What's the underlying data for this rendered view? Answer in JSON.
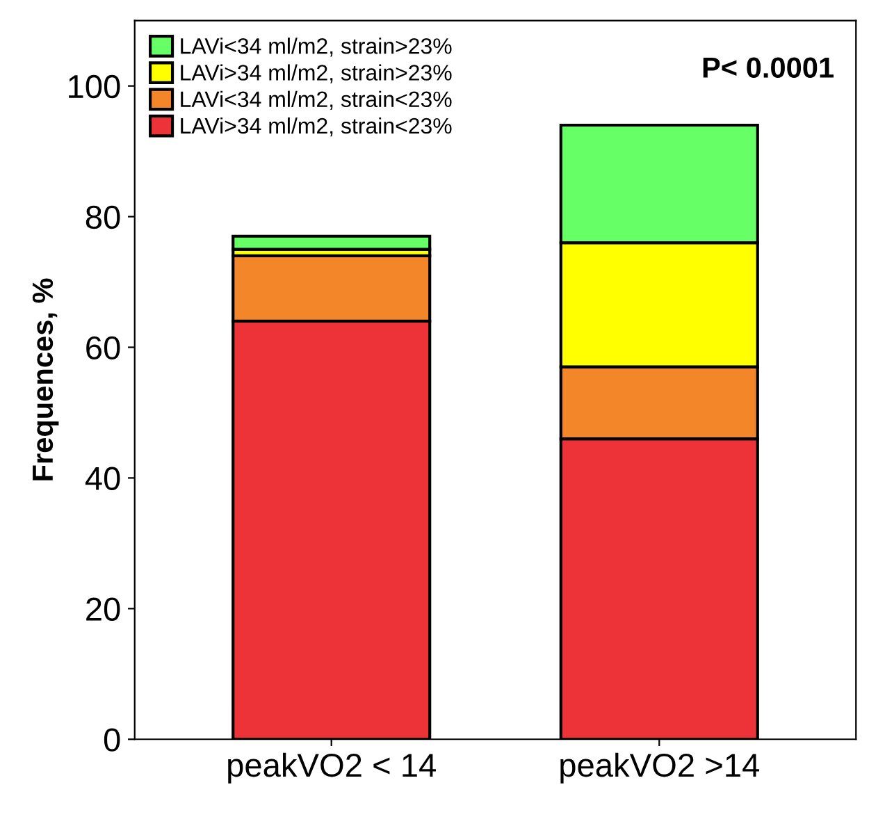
{
  "chart_data": {
    "type": "bar",
    "stacked": true,
    "ylabel": "Frequences, %",
    "categories": [
      "peakVO2 < 14",
      "peakVO2 >14"
    ],
    "series": [
      {
        "name": "LAVi>34 ml/m2, strain<23%",
        "color": "#ee3338",
        "values": [
          64,
          46
        ]
      },
      {
        "name": "LAVi<34 ml/m2, strain<23%",
        "color": "#f4862a",
        "values": [
          10,
          11
        ]
      },
      {
        "name": "LAVi>34 ml/m2, strain>23%",
        "color": "#ffff00",
        "values": [
          1,
          19
        ]
      },
      {
        "name": "LAVi<34 ml/m2, strain>23%",
        "color": "#66ff66",
        "values": [
          2,
          18
        ]
      }
    ],
    "ylim": [
      0,
      110
    ],
    "yticks": [
      0,
      20,
      40,
      60,
      80,
      100
    ],
    "grid": false,
    "legend": "top left",
    "annotations": [
      "P< 0.0001"
    ]
  }
}
